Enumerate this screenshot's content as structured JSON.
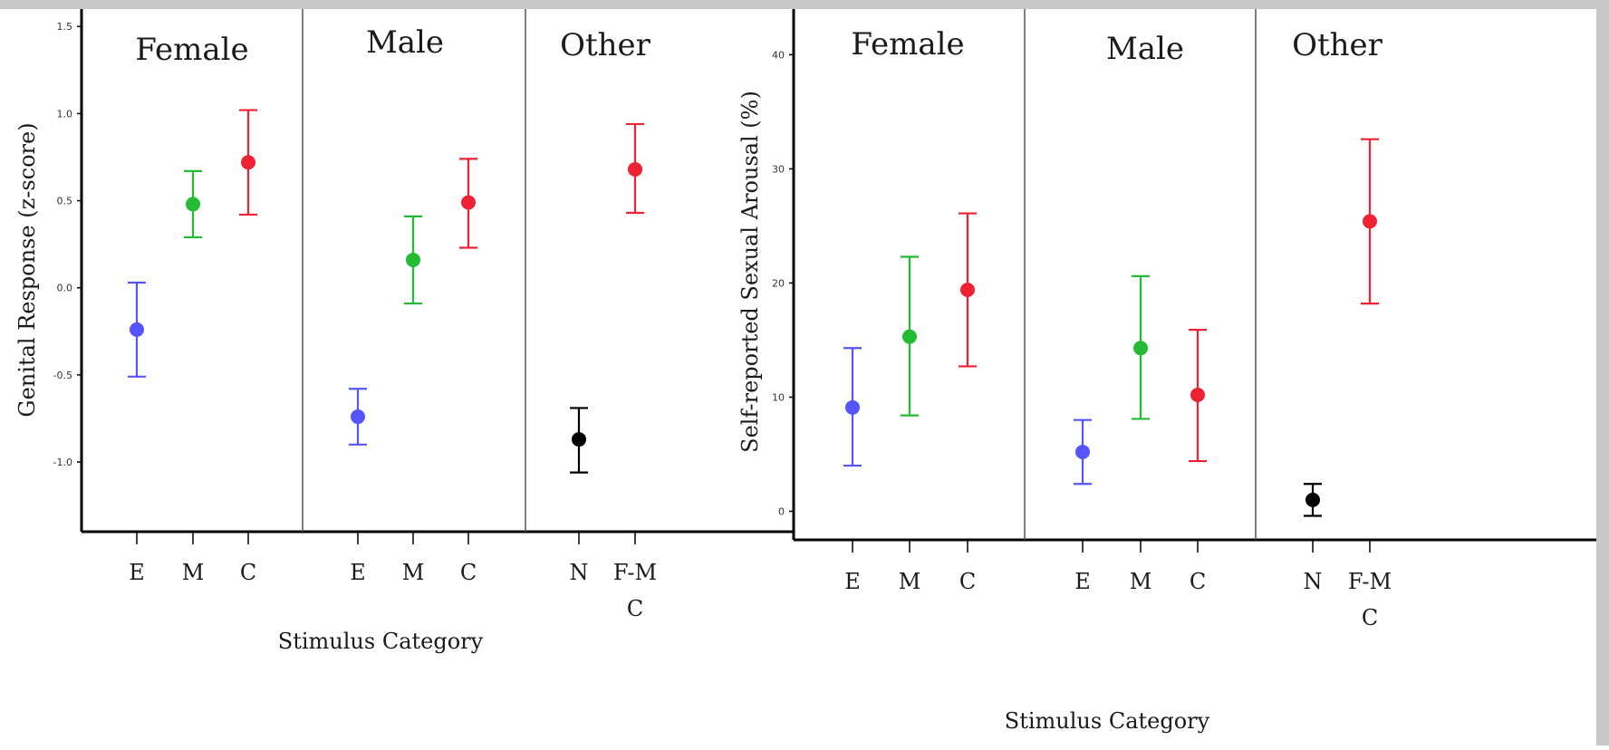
{
  "chart_data": [
    {
      "type": "scatter",
      "style": "point-with-error-bars",
      "ylabel": "Genital Response (z-score)",
      "xlabel": "Stimulus Category",
      "ylim": [
        -1.4,
        1.6
      ],
      "yticks": [
        "-1.0",
        "-0.5",
        "0.0",
        "0.5",
        "1.0",
        "1.5"
      ],
      "ytick_values": [
        -1.0,
        -0.5,
        0.0,
        0.5,
        1.0,
        1.5
      ],
      "panels": [
        "Female",
        "Male",
        "Other"
      ],
      "points": [
        {
          "panel": "Female",
          "category": "E",
          "value": -0.24,
          "low": -0.51,
          "high": 0.03,
          "color": "#5555ff"
        },
        {
          "panel": "Female",
          "category": "M",
          "value": 0.48,
          "low": 0.29,
          "high": 0.67,
          "color": "#22bb33"
        },
        {
          "panel": "Female",
          "category": "C",
          "value": 0.72,
          "low": 0.42,
          "high": 1.02,
          "color": "#ee2233"
        },
        {
          "panel": "Male",
          "category": "E",
          "value": -0.74,
          "low": -0.9,
          "high": -0.58,
          "color": "#5555ff"
        },
        {
          "panel": "Male",
          "category": "M",
          "value": 0.16,
          "low": -0.09,
          "high": 0.41,
          "color": "#22bb33"
        },
        {
          "panel": "Male",
          "category": "C",
          "value": 0.49,
          "low": 0.23,
          "high": 0.74,
          "color": "#ee2233"
        },
        {
          "panel": "Other",
          "category": "N",
          "value": -0.87,
          "low": -1.06,
          "high": -0.69,
          "color": "#000000"
        },
        {
          "panel": "Other",
          "category": "F-M C",
          "value": 0.68,
          "low": 0.43,
          "high": 0.94,
          "color": "#ee2233"
        }
      ]
    },
    {
      "type": "scatter",
      "style": "point-with-error-bars",
      "ylabel": "Self-reported Sexual Arousal (%)",
      "xlabel": "Stimulus Category",
      "ylim": [
        -2.5,
        44
      ],
      "yticks": [
        "0",
        "10",
        "20",
        "30",
        "40"
      ],
      "ytick_values": [
        0,
        10,
        20,
        30,
        40
      ],
      "panels": [
        "Female",
        "Male",
        "Other"
      ],
      "points": [
        {
          "panel": "Female",
          "category": "E",
          "value": 9.1,
          "low": 4.0,
          "high": 14.3,
          "color": "#5555ff"
        },
        {
          "panel": "Female",
          "category": "M",
          "value": 15.3,
          "low": 8.4,
          "high": 22.3,
          "color": "#22bb33"
        },
        {
          "panel": "Female",
          "category": "C",
          "value": 19.4,
          "low": 12.7,
          "high": 26.1,
          "color": "#ee2233"
        },
        {
          "panel": "Male",
          "category": "E",
          "value": 5.2,
          "low": 2.4,
          "high": 8.0,
          "color": "#5555ff"
        },
        {
          "panel": "Male",
          "category": "M",
          "value": 14.3,
          "low": 8.1,
          "high": 20.6,
          "color": "#22bb33"
        },
        {
          "panel": "Male",
          "category": "C",
          "value": 10.2,
          "low": 4.4,
          "high": 15.9,
          "color": "#ee2233"
        },
        {
          "panel": "Other",
          "category": "N",
          "value": 1.0,
          "low": -0.4,
          "high": 2.4,
          "color": "#000000"
        },
        {
          "panel": "Other",
          "category": "F-M C",
          "value": 25.4,
          "low": 18.2,
          "high": 32.6,
          "color": "#ee2233"
        }
      ]
    }
  ]
}
